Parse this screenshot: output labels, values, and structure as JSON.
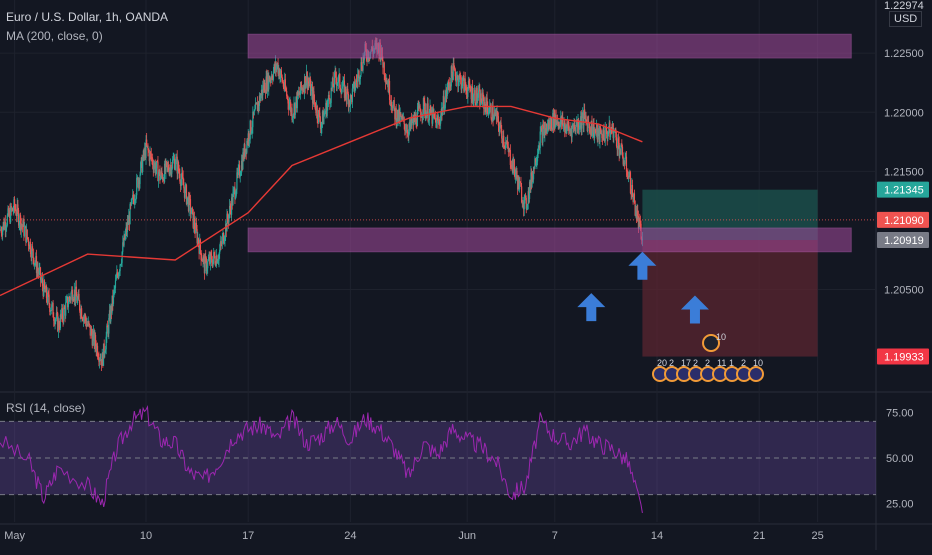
{
  "header": {
    "title": "Euro / U.S. Dollar, 1h, OANDA",
    "ma_label": "MA (200, close, 0)",
    "rsi_label": "RSI (14, close)",
    "currency_button": "USD",
    "top_price": "1.22974"
  },
  "colors": {
    "background": "#131722",
    "candle_up": "#26a69a",
    "candle_down": "#ef5350",
    "ma_line": "#e53935",
    "zone_fill": "#a34a9c",
    "rsi_line": "#9c27b0",
    "arrow": "#3b7dd8",
    "target_zone": "#1b4d4a",
    "stop_zone": "#5b2630"
  },
  "chart_data": [
    {
      "type": "candlestick",
      "symbol": "EURUSD",
      "interval": "1h",
      "source": "OANDA",
      "ylim": [
        1.1965,
        1.2295
      ],
      "y_ticks": [
        "1.22500",
        "1.22000",
        "1.21500",
        "1.20500"
      ],
      "x_ticks": [
        "May",
        "10",
        "17",
        "24",
        "Jun",
        "7",
        "14",
        "21",
        "25"
      ],
      "x_tick_values": [
        1,
        10,
        17,
        24,
        32,
        38,
        45,
        52,
        56
      ],
      "xlim": [
        0,
        60
      ],
      "price_path": [
        [
          0,
          1.21
        ],
        [
          1,
          1.212
        ],
        [
          2,
          1.209
        ],
        [
          3,
          1.205
        ],
        [
          4,
          1.202
        ],
        [
          5,
          1.205
        ],
        [
          6,
          1.202
        ],
        [
          7,
          1.199
        ],
        [
          8,
          1.206
        ],
        [
          9,
          1.212
        ],
        [
          10,
          1.217
        ],
        [
          11,
          1.2145
        ],
        [
          12,
          1.216
        ],
        [
          13,
          1.212
        ],
        [
          14,
          1.207
        ],
        [
          15,
          1.208
        ],
        [
          16,
          1.213
        ],
        [
          17,
          1.218
        ],
        [
          18,
          1.222
        ],
        [
          19,
          1.224
        ],
        [
          20,
          1.22
        ],
        [
          21,
          1.223
        ],
        [
          22,
          1.219
        ],
        [
          23,
          1.223
        ],
        [
          24,
          1.221
        ],
        [
          25,
          1.225
        ],
        [
          26,
          1.2255
        ],
        [
          27,
          1.22
        ],
        [
          28,
          1.2185
        ],
        [
          29,
          1.2205
        ],
        [
          30,
          1.219
        ],
        [
          31,
          1.2235
        ],
        [
          32,
          1.222
        ],
        [
          33,
          1.221
        ],
        [
          34,
          1.2195
        ],
        [
          35,
          1.216
        ],
        [
          36,
          1.212
        ],
        [
          37,
          1.218
        ],
        [
          38,
          1.2195
        ],
        [
          39,
          1.2185
        ],
        [
          40,
          1.2195
        ],
        [
          41,
          1.218
        ],
        [
          42,
          1.2185
        ],
        [
          43,
          1.215
        ],
        [
          44,
          1.209
        ]
      ],
      "ma_path": [
        [
          0,
          1.2045
        ],
        [
          6,
          1.208
        ],
        [
          12,
          1.2075
        ],
        [
          17,
          1.2115
        ],
        [
          20,
          1.2155
        ],
        [
          24,
          1.2175
        ],
        [
          28,
          1.2195
        ],
        [
          32,
          1.2205
        ],
        [
          35,
          1.2205
        ],
        [
          38,
          1.2195
        ],
        [
          41,
          1.219
        ],
        [
          44,
          1.2175
        ]
      ],
      "zones": [
        {
          "name": "resistance-zone",
          "y0": 1.2246,
          "y1": 1.2266,
          "x0": 17,
          "x1": 58.3
        },
        {
          "name": "support-zone",
          "y0": 1.2082,
          "y1": 1.2102,
          "x0": 17,
          "x1": 58.3
        }
      ],
      "position": {
        "entry": 1.20919,
        "target": 1.21345,
        "stop": 1.19933,
        "x0": 44,
        "x1": 56
      },
      "price_labels": [
        {
          "text": "1.21345",
          "value": 1.21345,
          "color": "#26a69a"
        },
        {
          "text": "1.21090",
          "value": 1.2109,
          "color": "#ef5350"
        },
        {
          "text": "1.20919",
          "value": 1.20919,
          "color": "#787b86"
        },
        {
          "text": "1.19933",
          "value": 1.19933,
          "color": "#f23645"
        }
      ],
      "arrows": [
        {
          "x": 40.5,
          "y": 1.2047
        },
        {
          "x": 44,
          "y": 1.2082
        },
        {
          "x": 47.6,
          "y": 1.2045
        }
      ],
      "events": {
        "top_badge": "10",
        "row_labels": [
          "20",
          "2",
          "17",
          "2",
          "2",
          "11",
          "1",
          "2",
          "10"
        ]
      }
    },
    {
      "type": "line",
      "name": "RSI (14, close)",
      "ylim": [
        15,
        85
      ],
      "y_ticks": [
        "75.00",
        "50.00",
        "25.00"
      ],
      "levels": [
        70,
        50,
        30
      ],
      "band": [
        30,
        70
      ],
      "xlim": [
        0,
        60
      ],
      "rsi_path": [
        [
          0,
          60
        ],
        [
          2,
          48
        ],
        [
          3,
          28
        ],
        [
          4,
          45
        ],
        [
          6,
          35
        ],
        [
          7,
          25
        ],
        [
          8,
          55
        ],
        [
          9,
          70
        ],
        [
          10,
          75
        ],
        [
          11,
          60
        ],
        [
          12,
          58
        ],
        [
          13,
          42
        ],
        [
          14,
          38
        ],
        [
          15,
          48
        ],
        [
          16,
          62
        ],
        [
          17,
          66
        ],
        [
          18,
          68
        ],
        [
          19,
          60
        ],
        [
          20,
          72
        ],
        [
          21,
          58
        ],
        [
          22,
          62
        ],
        [
          23,
          70
        ],
        [
          24,
          60
        ],
        [
          25,
          72
        ],
        [
          26,
          66
        ],
        [
          27,
          55
        ],
        [
          28,
          40
        ],
        [
          29,
          58
        ],
        [
          30,
          52
        ],
        [
          31,
          66
        ],
        [
          32,
          60
        ],
        [
          33,
          56
        ],
        [
          34,
          48
        ],
        [
          35,
          30
        ],
        [
          36,
          35
        ],
        [
          37,
          70
        ],
        [
          38,
          62
        ],
        [
          39,
          58
        ],
        [
          40,
          65
        ],
        [
          41,
          58
        ],
        [
          42,
          55
        ],
        [
          43,
          48
        ],
        [
          44,
          20
        ]
      ]
    }
  ]
}
